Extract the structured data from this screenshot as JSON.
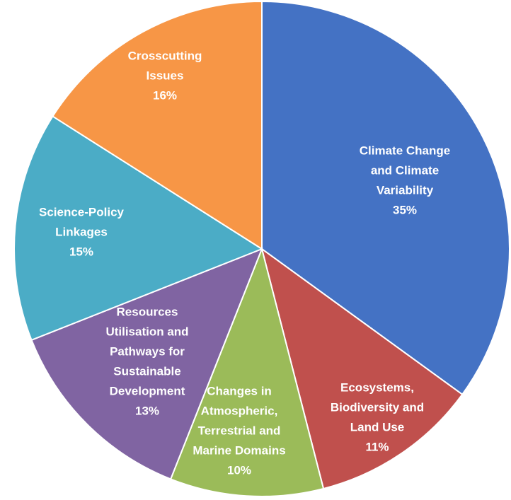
{
  "chart_data": {
    "type": "pie",
    "title": "",
    "start_angle_deg": 0,
    "direction": "clockwise",
    "slices": [
      {
        "label": "Climate Change and Climate Variability",
        "label_lines": [
          "Climate Change",
          "and Climate",
          "Variability"
        ],
        "value": 35,
        "value_label": "35%",
        "color": "#4472C4"
      },
      {
        "label": "Ecosystems, Biodiversity and Land Use",
        "label_lines": [
          "Ecosystems,",
          "Biodiversity and",
          "Land Use"
        ],
        "value": 11,
        "value_label": "11%",
        "color": "#C0504D"
      },
      {
        "label": "Changes in Atmospheric, Terrestrial and Marine Domains",
        "label_lines": [
          "Changes in",
          "Atmospheric,",
          "Terrestrial and",
          "Marine Domains"
        ],
        "value": 10,
        "value_label": "10%",
        "color": "#9BBB59"
      },
      {
        "label": "Resources Utilisation and Pathways for Sustainable Development",
        "label_lines": [
          "Resources",
          "Utilisation and",
          "Pathways for",
          "Sustainable",
          "Development"
        ],
        "value": 13,
        "value_label": "13%",
        "color": "#8064A2"
      },
      {
        "label": "Science-Policy Linkages",
        "label_lines": [
          "Science-Policy",
          "Linkages"
        ],
        "value": 15,
        "value_label": "15%",
        "color": "#4BACC6"
      },
      {
        "label": "Crosscutting Issues",
        "label_lines": [
          "Crosscutting",
          "Issues"
        ],
        "value": 16,
        "value_label": "16%",
        "color": "#F79646"
      }
    ]
  }
}
